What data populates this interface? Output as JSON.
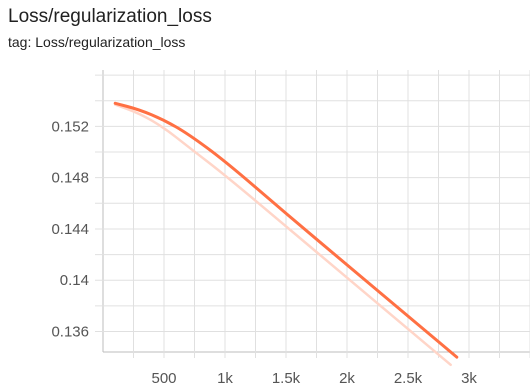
{
  "card": {
    "title": "Loss/regularization_loss",
    "tag": "tag: Loss/regularization_loss"
  },
  "chart_data": {
    "type": "line",
    "title": "Loss/regularization_loss",
    "xlabel": "",
    "ylabel": "",
    "xlim": [
      0,
      3500
    ],
    "ylim": [
      0.1344,
      0.1564
    ],
    "grid": true,
    "x_ticks": [
      {
        "value": 500,
        "label": "500"
      },
      {
        "value": 1000,
        "label": "1k"
      },
      {
        "value": 1500,
        "label": "1.5k"
      },
      {
        "value": 2000,
        "label": "2k"
      },
      {
        "value": 2500,
        "label": "2.5k"
      },
      {
        "value": 3000,
        "label": "3k"
      }
    ],
    "y_ticks": [
      {
        "value": 0.152,
        "label": "0.152"
      },
      {
        "value": 0.148,
        "label": "0.148"
      },
      {
        "value": 0.144,
        "label": "0.144"
      },
      {
        "value": 0.14,
        "label": "0.14"
      },
      {
        "value": 0.136,
        "label": "0.136"
      }
    ],
    "series": [
      {
        "color": "#ff7043",
        "x": [
          100,
          300,
          500,
          700,
          1000,
          1500,
          2000,
          2500,
          2900
        ],
        "y": [
          0.1538,
          0.1533,
          0.1525,
          0.1514,
          0.1493,
          0.1452,
          0.1412,
          0.1372,
          0.134
        ]
      },
      {
        "color": "#ffd5c8",
        "x": [
          100,
          300,
          500,
          700,
          1000,
          1500,
          2000,
          2500,
          2850
        ],
        "y": [
          0.1537,
          0.153,
          0.1519,
          0.1504,
          0.1482,
          0.1442,
          0.1402,
          0.1362,
          0.1334
        ]
      }
    ]
  }
}
